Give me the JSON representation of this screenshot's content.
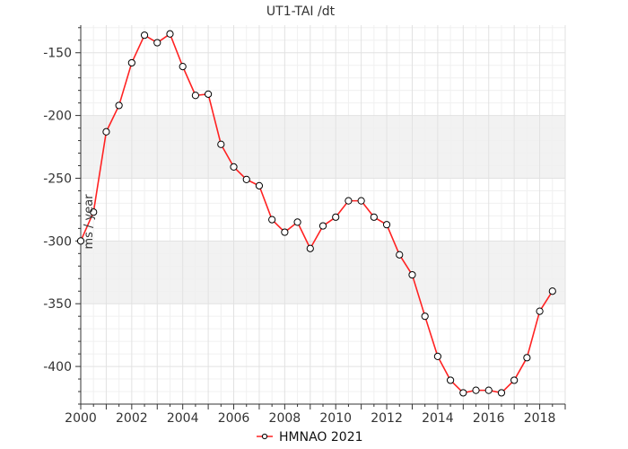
{
  "chart_data": {
    "type": "line",
    "title": "UT1-TAI /dt",
    "ylabel": "ms / year",
    "xlabel": "",
    "xlim": [
      2000,
      2019
    ],
    "ylim": [
      -430,
      -128
    ],
    "x_ticks": [
      2000,
      2002,
      2004,
      2006,
      2008,
      2010,
      2012,
      2014,
      2016,
      2018
    ],
    "y_ticks": [
      -150,
      -200,
      -250,
      -300,
      -350,
      -400
    ],
    "bands": [
      [
        -250,
        -200
      ],
      [
        -350,
        -300
      ]
    ],
    "grid": true,
    "legend_position": "bottom-center",
    "series": [
      {
        "name": "HMNAO 2021",
        "color": "#ff2222",
        "x": [
          2000.0,
          2000.5,
          2001.0,
          2001.5,
          2002.0,
          2002.5,
          2003.0,
          2003.5,
          2004.0,
          2004.5,
          2005.0,
          2005.5,
          2006.0,
          2006.5,
          2007.0,
          2007.5,
          2008.0,
          2008.5,
          2009.0,
          2009.5,
          2010.0,
          2010.5,
          2011.0,
          2011.5,
          2012.0,
          2012.5,
          2013.0,
          2013.5,
          2014.0,
          2014.5,
          2015.0,
          2015.5,
          2016.0,
          2016.5,
          2017.0,
          2017.5,
          2018.0,
          2018.5
        ],
        "y": [
          -300,
          -277,
          -213,
          -192,
          -158,
          -136,
          -142,
          -135,
          -161,
          -184,
          -183,
          -223,
          -241,
          -251,
          -256,
          -283,
          -293,
          -285,
          -306,
          -288,
          -281,
          -268,
          -268,
          -281,
          -287,
          -311,
          -327,
          -360,
          -392,
          -411,
          -421,
          -419,
          -419,
          -421,
          -411,
          -393,
          -356,
          -340
        ]
      }
    ]
  }
}
